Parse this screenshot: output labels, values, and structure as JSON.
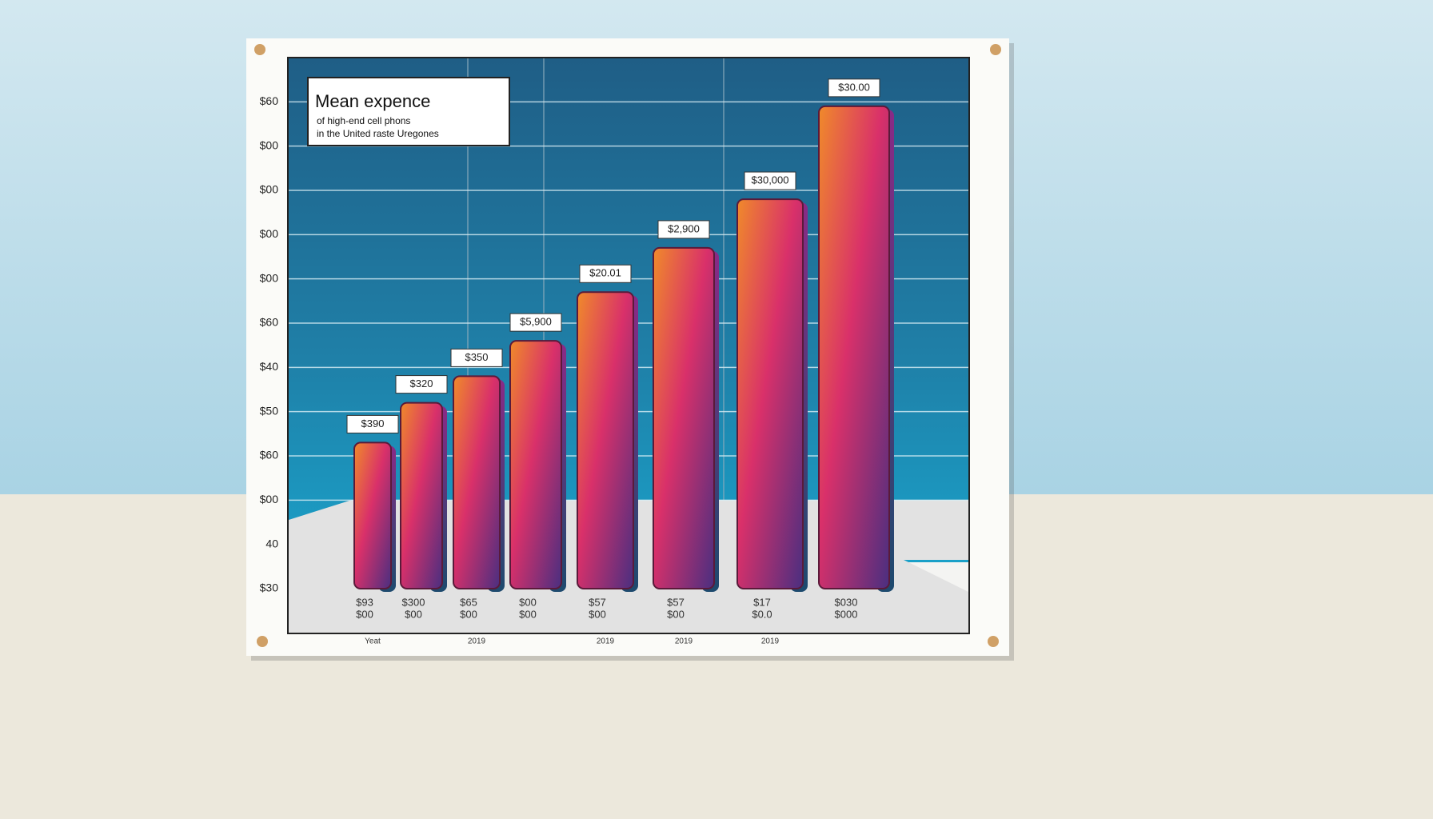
{
  "chart_data": {
    "type": "bar",
    "title": "Mean expence",
    "subtitle": [
      "of high-end cell phons",
      "in the United raste Uregones"
    ],
    "categories": [
      "Yeat",
      null,
      "2019",
      null,
      "2019",
      "2019",
      "2019",
      null
    ],
    "values": [
      3.3,
      4.2,
      4.8,
      5.6,
      6.7,
      7.7,
      8.8,
      10.9
    ],
    "top_labels": [
      "$390",
      "$320",
      "$350",
      "$5,900",
      "$20.01",
      "$2,900",
      "$30,000",
      "$30.00"
    ],
    "base_labels": [
      [
        "$93",
        "$00"
      ],
      [
        "$300",
        "$00"
      ],
      [
        "$65",
        "$00"
      ],
      [
        "$00",
        "$00"
      ],
      [
        "$57",
        "$00"
      ],
      [
        "$57",
        "$00"
      ],
      [
        "$17",
        "$0.0"
      ],
      [
        "$030",
        "$000"
      ]
    ],
    "ylim": [
      0,
      12
    ],
    "yticks": [
      {
        "value": 11,
        "label": "$60"
      },
      {
        "value": 10,
        "label": "$00"
      },
      {
        "value": 9,
        "label": "$00"
      },
      {
        "value": 8,
        "label": "$00"
      },
      {
        "value": 7,
        "label": "$00"
      },
      {
        "value": 6,
        "label": "$60"
      },
      {
        "value": 5,
        "label": "$40"
      },
      {
        "value": 4,
        "label": "$50"
      },
      {
        "value": 3,
        "label": "$60"
      },
      {
        "value": 2,
        "label": "$00"
      },
      {
        "value": 1,
        "label": "40"
      },
      {
        "value": 0,
        "label": "$30"
      }
    ],
    "grid": true
  }
}
